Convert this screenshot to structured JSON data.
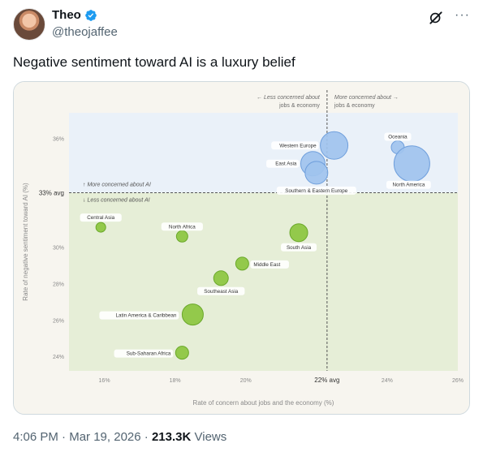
{
  "tweet": {
    "display_name": "Theo",
    "handle": "@theojaffee",
    "text": "Negative sentiment toward AI is a luxury belief",
    "time": "4:06 PM",
    "date": "Mar 19, 2026",
    "views_count": "213.3K",
    "views_label": "Views",
    "sep": "·",
    "more_icon": "···"
  },
  "colors": {
    "accent": "#1d9bf0",
    "muted": "#536471",
    "blue_bubble": "#9fc3ee",
    "green_bubble": "#8cc63f",
    "top_region": "#eaf1f9",
    "bottom_region": "#e6eed7"
  },
  "chart_data": {
    "type": "scatter",
    "title": "",
    "xlabel": "Rate of concern about jobs and the economy (%)",
    "ylabel": "Rate of negative sentiment toward AI (%)",
    "xlim": [
      15,
      26
    ],
    "ylim": [
      23.2,
      37.4
    ],
    "x_ticks": [
      "16%",
      "18%",
      "20%",
      "22% avg",
      "24%",
      "26%"
    ],
    "y_ticks": [
      "24%",
      "26%",
      "28%",
      "30%",
      "33% avg",
      "36%"
    ],
    "x_avg": 22.3,
    "y_avg": 33,
    "avg_x_label": "22% avg",
    "avg_y_label": "33% avg",
    "region_labels": {
      "left_top": "← Less concerned about",
      "left_bottom": "jobs & economy",
      "right_top": "More concerned about →",
      "right_bottom": "jobs & economy",
      "up": "↑ More concerned about AI",
      "down": "↓ Less concerned about AI"
    },
    "points": [
      {
        "label": "Western Europe",
        "x": 22.5,
        "y": 35.6,
        "size": 17,
        "group": "above"
      },
      {
        "label": "Oceania",
        "x": 24.3,
        "y": 35.5,
        "size": 8,
        "group": "above"
      },
      {
        "label": "North America",
        "x": 24.7,
        "y": 34.6,
        "size": 22,
        "group": "above"
      },
      {
        "label": "East Asia",
        "x": 21.9,
        "y": 34.6,
        "size": 15,
        "group": "above"
      },
      {
        "label": "Southern & Eastern Europe",
        "x": 22.0,
        "y": 34.1,
        "size": 14,
        "group": "above"
      },
      {
        "label": "Central Asia",
        "x": 15.9,
        "y": 31.1,
        "size": 6,
        "group": "below"
      },
      {
        "label": "North Africa",
        "x": 18.2,
        "y": 30.6,
        "size": 7,
        "group": "below"
      },
      {
        "label": "South Asia",
        "x": 21.5,
        "y": 30.8,
        "size": 11,
        "group": "below"
      },
      {
        "label": "Middle East",
        "x": 19.9,
        "y": 29.1,
        "size": 8,
        "group": "below"
      },
      {
        "label": "Southeast Asia",
        "x": 19.3,
        "y": 28.3,
        "size": 9,
        "group": "below"
      },
      {
        "label": "Latin America & Caribbean",
        "x": 18.5,
        "y": 26.3,
        "size": 13,
        "group": "below"
      },
      {
        "label": "Sub-Saharan Africa",
        "x": 18.2,
        "y": 24.2,
        "size": 8,
        "group": "below"
      }
    ]
  }
}
